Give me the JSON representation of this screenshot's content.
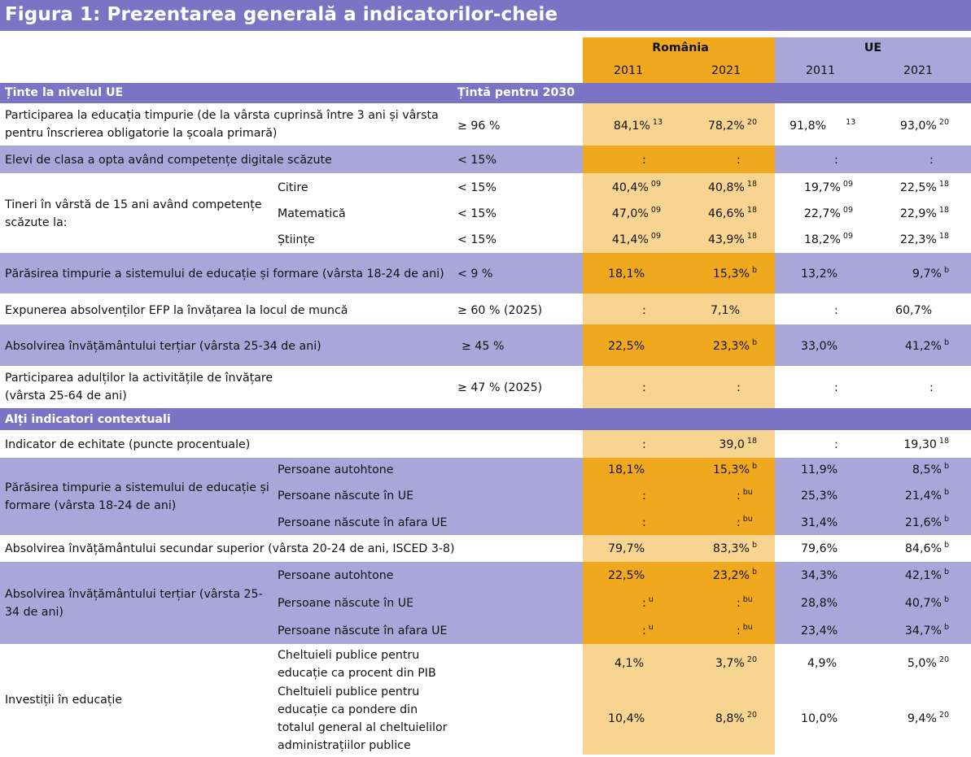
{
  "title": "Figura 1: Prezentarea generală a indicatorilor-cheie",
  "header": {
    "romania": "România",
    "ue": "UE",
    "years": [
      "2011",
      "2021",
      "2011",
      "2021"
    ]
  },
  "section1": {
    "label": "Ținte la nivelul UE",
    "target_label": "Țintă pentru 2030"
  },
  "rows": {
    "participation": {
      "label": "Participarea la educația timpurie (de la vârsta cuprinsă între 3 ani și vârsta pentru înscrierea obligatorie la școala primară)",
      "target": "≥ 96 %",
      "ro2011": "84,1%",
      "ro2011_sup": "13",
      "ro2021": "78,2%",
      "ro2021_sup": "20",
      "ue2011": "91,8%",
      "ue2011_sup": "13",
      "ue2021": "93,0%",
      "ue2021_sup": "20"
    },
    "digital": {
      "label": "Elevi de clasa a opta având competențe digitale scăzute",
      "target": "< 15%",
      "ro2011": ":",
      "ro2021": ":",
      "ue2011": ":",
      "ue2021": ":"
    },
    "youth": {
      "label": "Tineri în vârstă de 15 ani având competențe scăzute la:",
      "subrows": [
        {
          "sub": "Citire",
          "target": "< 15%",
          "ro2011": "40,4%",
          "ro2011_sup": "09",
          "ro2021": "40,8%",
          "ro2021_sup": "18",
          "ue2011": "19,7%",
          "ue2011_sup": "09",
          "ue2021": "22,5%",
          "ue2021_sup": "18"
        },
        {
          "sub": "Matematică",
          "target": "< 15%",
          "ro2011": "47,0%",
          "ro2011_sup": "09",
          "ro2021": "46,6%",
          "ro2021_sup": "18",
          "ue2011": "22,7%",
          "ue2011_sup": "09",
          "ue2021": "22,9%",
          "ue2021_sup": "18"
        },
        {
          "sub": "Științe",
          "target": "< 15%",
          "ro2011": "41,4%",
          "ro2011_sup": "09",
          "ro2021": "43,9%",
          "ro2021_sup": "18",
          "ue2011": "18,2%",
          "ue2011_sup": "09",
          "ue2021": "22,3%",
          "ue2021_sup": "18"
        }
      ]
    },
    "early_leaving": {
      "label": "Părăsirea timpurie a sistemului de educație și formare (vârsta 18-24 de ani)",
      "target": "< 9 %",
      "ro2011": "18,1%",
      "ro2021": "15,3%",
      "ro2021_sup": "b",
      "ue2011": "13,2%",
      "ue2021": "9,7%",
      "ue2021_sup": "b"
    },
    "vet": {
      "label": "Expunerea absolvenților EFP la învățarea la locul de muncă",
      "target": "≥  60 % (2025)",
      "ro2011": ":",
      "ro2021": "7,1%",
      "ue2011": ":",
      "ue2021": "60,7%"
    },
    "tertiary": {
      "label": "Absolvirea învățământului terțiar (vârsta 25-34 de ani)",
      "target": "≥ 45 %",
      "ro2011": "22,5%",
      "ro2021": "23,3%",
      "ro2021_sup": "b",
      "ue2011": "33,0%",
      "ue2021": "41,2%",
      "ue2021_sup": "b"
    },
    "adults": {
      "label": "Participarea adulților la activitățile de învățare (vârsta 25-64 de ani)",
      "target": "≥ 47 % (2025)",
      "ro2011": ":",
      "ro2021": ":",
      "ue2011": ":",
      "ue2021": ":"
    }
  },
  "section2": {
    "label": "Alți indicatori contextuali"
  },
  "rows2": {
    "equity": {
      "label": "Indicator de echitate (puncte procentuale)",
      "ro2011": ":",
      "ro2021": "39,0",
      "ro2021_sup": "18",
      "ue2011": ":",
      "ue2021": "19,30",
      "ue2021_sup": "18"
    },
    "early_leaving2": {
      "label": "Părăsirea timpurie a sistemului de educație și formare (vârsta 18-24 de ani)",
      "subrows": [
        {
          "sub": "Persoane autohtone",
          "ro2011": "18,1%",
          "ro2011_sup": "",
          "ro2021": "15,3%",
          "ro2021_sup": "b",
          "ue2011": "11,9%",
          "ue2021": "8,5%",
          "ue2021_sup": "b"
        },
        {
          "sub": "Persoane născute în UE",
          "ro2011": ":",
          "ro2011_sup": "",
          "ro2021": ":",
          "ro2021_sup": "bu",
          "ue2011": "25,3%",
          "ue2021": "21,4%",
          "ue2021_sup": "b"
        },
        {
          "sub": "Persoane născute în afara UE",
          "ro2011": ":",
          "ro2011_sup": "",
          "ro2021": ":",
          "ro2021_sup": "bu",
          "ue2011": "31,4%",
          "ue2021": "21,6%",
          "ue2021_sup": "b"
        }
      ]
    },
    "upper_secondary": {
      "label": "Absolvirea învățământului secundar superior (vârsta 20-24 de ani, ISCED 3-8)",
      "ro2011": "79,7%",
      "ro2021": "83,3%",
      "ro2021_sup": "b",
      "ue2011": "79,6%",
      "ue2021": "84,6%",
      "ue2021_sup": "b"
    },
    "tertiary2": {
      "label": "Absolvirea învățământului terțiar (vârsta 25-34 de ani)",
      "subrows": [
        {
          "sub": "Persoane autohtone",
          "ro2011": "22,5%",
          "ro2011_sup": "",
          "ro2021": "23,2%",
          "ro2021_sup": "b",
          "ue2011": "34,3%",
          "ue2021": "42,1%",
          "ue2021_sup": "b"
        },
        {
          "sub": "Persoane născute în UE",
          "ro2011": ":",
          "ro2011_sup": "u",
          "ro2021": ":",
          "ro2021_sup": "bu",
          "ue2011": "28,8%",
          "ue2021": "40,7%",
          "ue2021_sup": "b"
        },
        {
          "sub": "Persoane născute în afara UE",
          "ro2011": ":",
          "ro2011_sup": "u",
          "ro2021": ":",
          "ro2021_sup": "bu",
          "ue2011": "23,4%",
          "ue2021": "34,7%",
          "ue2021_sup": "b"
        }
      ]
    },
    "investment": {
      "label": "Investiții în educație",
      "subrows": [
        {
          "sub": "Cheltuieli publice pentru educație ca procent din PIB",
          "ro2011": "4,1%",
          "ro2021": "3,7%",
          "ro2021_sup": "20",
          "ue2011": "4,9%",
          "ue2021": "5,0%",
          "ue2021_sup": "20"
        },
        {
          "sub": "Cheltuieli publice pentru educație ca pondere din totalul general al cheltuielilor administrațiilor publice",
          "ro2011": "10,4%",
          "ro2021": "8,8%",
          "ro2021_sup": "20",
          "ue2011": "10,0%",
          "ue2021": "9,4%",
          "ue2021_sup": "20"
        }
      ]
    }
  },
  "colors": {
    "title_bg": "#7b73c4",
    "section_bg": "#7b73c4",
    "lavender_row": "#aaa6d9",
    "ue_header": "#aaa6d9",
    "ro_dark": "#f0a81e",
    "ro_light": "#f8d491"
  }
}
